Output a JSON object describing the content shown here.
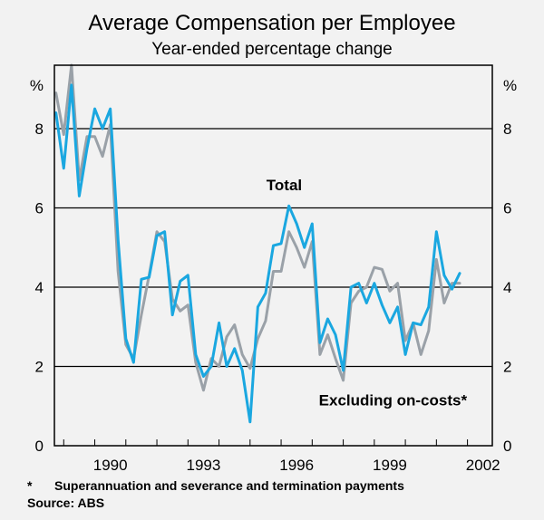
{
  "chart_data": {
    "type": "line",
    "title": "Average Compensation per Employee",
    "subtitle": "Year-ended percentage change",
    "ylabel_left": "%",
    "ylabel_right": "%",
    "ylim": [
      0,
      9.6
    ],
    "yticks": [
      0,
      2,
      4,
      6,
      8
    ],
    "xlim": [
      1988.7,
      2002.8
    ],
    "xticks": [
      1990,
      1993,
      1996,
      1999,
      2002
    ],
    "grid": true,
    "annotations": [
      {
        "text": "Total",
        "series": "Total"
      },
      {
        "text": "Excluding on-costs*",
        "series": "Excluding on-costs"
      }
    ],
    "series": [
      {
        "name": "Total",
        "color": "#1aa7e0",
        "x": [
          1988.75,
          1989.0,
          1989.25,
          1989.5,
          1989.75,
          1990.0,
          1990.25,
          1990.5,
          1990.75,
          1991.0,
          1991.25,
          1991.5,
          1991.75,
          1992.0,
          1992.25,
          1992.5,
          1992.75,
          1993.0,
          1993.25,
          1993.5,
          1993.75,
          1994.0,
          1994.25,
          1994.5,
          1994.75,
          1995.0,
          1995.25,
          1995.5,
          1995.75,
          1996.0,
          1996.25,
          1996.5,
          1996.75,
          1997.0,
          1997.25,
          1997.5,
          1997.75,
          1998.0,
          1998.25,
          1998.5,
          1998.75,
          1999.0,
          1999.25,
          1999.5,
          1999.75,
          2000.0,
          2000.25,
          2000.5,
          2000.75,
          2001.0,
          2001.25,
          2001.5,
          2001.75
        ],
        "values": [
          8.4,
          7.0,
          9.1,
          6.3,
          7.5,
          8.5,
          8.0,
          8.5,
          5.2,
          2.7,
          2.1,
          4.2,
          4.25,
          5.3,
          5.4,
          3.3,
          4.15,
          4.3,
          2.3,
          1.75,
          2.0,
          3.1,
          2.0,
          2.45,
          1.9,
          0.6,
          3.5,
          3.85,
          5.05,
          5.1,
          6.05,
          5.6,
          5.0,
          5.6,
          2.6,
          3.2,
          2.8,
          1.9,
          4.0,
          4.1,
          3.6,
          4.1,
          3.55,
          3.1,
          3.5,
          2.3,
          3.1,
          3.05,
          3.5,
          5.4,
          4.3,
          3.95,
          4.35
        ]
      },
      {
        "name": "Excluding on-costs",
        "color": "#9aa1a8",
        "x": [
          1988.75,
          1989.0,
          1989.25,
          1989.5,
          1989.75,
          1990.0,
          1990.25,
          1990.5,
          1990.75,
          1991.0,
          1991.25,
          1991.5,
          1991.75,
          1992.0,
          1992.25,
          1992.5,
          1992.75,
          1993.0,
          1993.25,
          1993.5,
          1993.75,
          1994.0,
          1994.25,
          1994.5,
          1994.75,
          1995.0,
          1995.25,
          1995.5,
          1995.75,
          1996.0,
          1996.25,
          1996.5,
          1996.75,
          1997.0,
          1997.25,
          1997.5,
          1997.75,
          1998.0,
          1998.25,
          1998.5,
          1998.75,
          1999.0,
          1999.25,
          1999.5,
          1999.75,
          2000.0,
          2000.25,
          2000.5,
          2000.75,
          2001.0,
          2001.25,
          2001.5,
          2001.75
        ],
        "values": [
          8.9,
          7.85,
          9.6,
          6.7,
          7.8,
          7.8,
          7.3,
          8.1,
          4.4,
          2.55,
          2.2,
          3.3,
          4.3,
          5.4,
          5.15,
          3.7,
          3.4,
          3.55,
          2.1,
          1.4,
          2.2,
          2.0,
          2.75,
          3.05,
          2.3,
          1.95,
          2.7,
          3.15,
          4.4,
          4.4,
          5.4,
          5.0,
          4.5,
          5.15,
          2.3,
          2.8,
          2.2,
          1.65,
          3.6,
          3.9,
          4.0,
          4.5,
          4.45,
          3.9,
          4.1,
          2.65,
          3.1,
          2.3,
          2.9,
          4.7,
          3.6,
          4.1,
          4.1
        ]
      }
    ],
    "footnote_star": "*",
    "footnote": "Superannuation and severance and termination payments",
    "source": "Source: ABS"
  }
}
